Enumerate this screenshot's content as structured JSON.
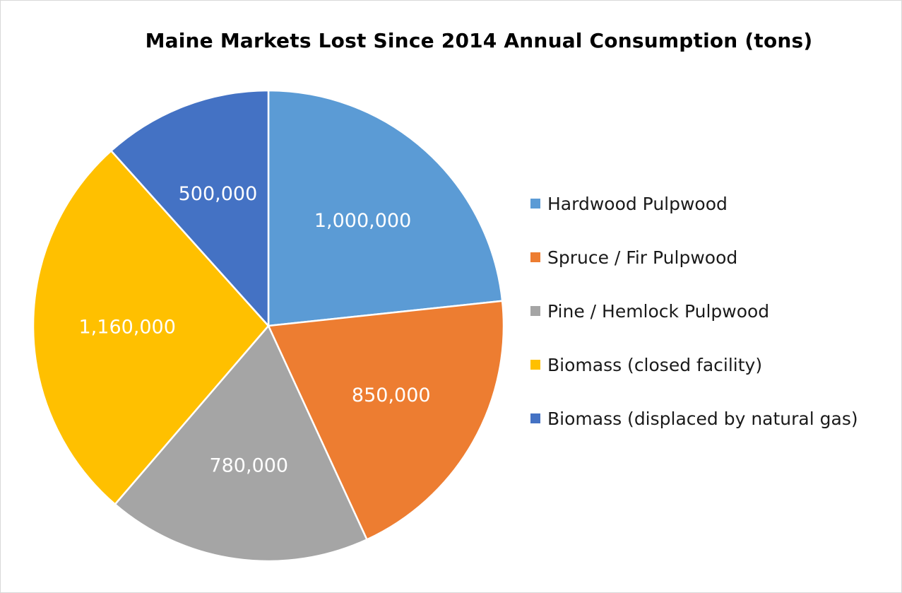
{
  "chart_data": {
    "type": "pie",
    "title": "Maine Markets Lost Since 2014 Annual Consumption (tons)",
    "legend_position": "right",
    "slices": [
      {
        "name": "Hardwood Pulpwood",
        "value": 1000000,
        "label": "1,000,000",
        "color": "#5b9bd5"
      },
      {
        "name": "Spruce / Fir Pulpwood",
        "value": 850000,
        "label": "850,000",
        "color": "#ed7d31"
      },
      {
        "name": "Pine / Hemlock Pulpwood",
        "value": 780000,
        "label": "780,000",
        "color": "#a5a5a5"
      },
      {
        "name": "Biomass (closed facility)",
        "value": 1160000,
        "label": "1,160,000",
        "color": "#ffc000"
      },
      {
        "name": "Biomass (displaced by natural gas)",
        "value": 500000,
        "label": "500,000",
        "color": "#4472c4"
      }
    ]
  }
}
